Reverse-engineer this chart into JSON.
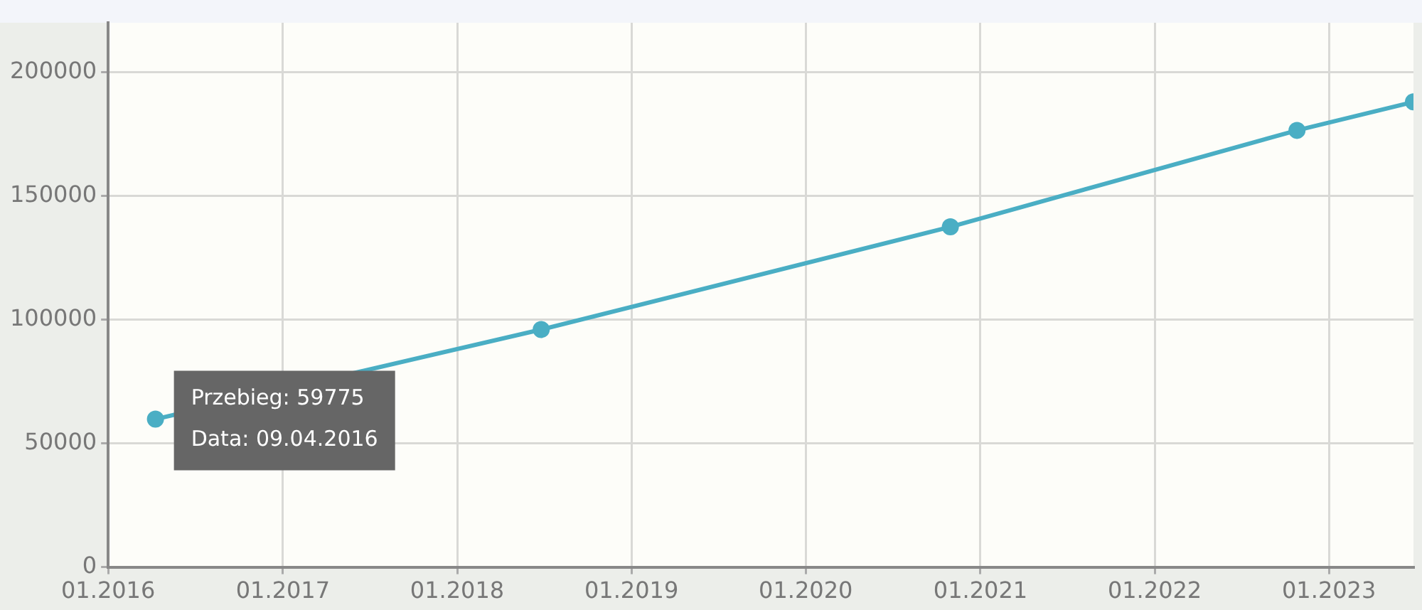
{
  "chart_data": {
    "type": "line",
    "x": [
      "2016-04-09",
      "2018-06-26",
      "2020-10-30",
      "2022-10-26",
      "2023-06-27"
    ],
    "series": [
      {
        "color": "#4aaec4",
        "values": [
          59775,
          96000,
          137500,
          176500,
          188000
        ]
      }
    ],
    "xlim": [
      "2016-01-01",
      "2023-06-27"
    ],
    "xticks": [
      {
        "value": "2016-01",
        "label": "01.2016"
      },
      {
        "value": "2017-01",
        "label": "01.2017"
      },
      {
        "value": "2018-01",
        "label": "01.2018"
      },
      {
        "value": "2019-01",
        "label": "01.2019"
      },
      {
        "value": "2020-01",
        "label": "01.2020"
      },
      {
        "value": "2021-01",
        "label": "01.2021"
      },
      {
        "value": "2022-01",
        "label": "01.2022"
      },
      {
        "value": "2023-01",
        "label": "01.2023"
      }
    ],
    "ylim": [
      0,
      220000
    ],
    "yticks": [
      0,
      50000,
      100000,
      150000,
      200000
    ],
    "grid": true,
    "legend": false,
    "marker": "circle",
    "line_style": "solid",
    "annotations": [
      {
        "text": "Przebieg: 59775",
        "x": "2016-04-09",
        "y": 59775
      },
      "Data: 09.04.2016"
    ]
  }
}
